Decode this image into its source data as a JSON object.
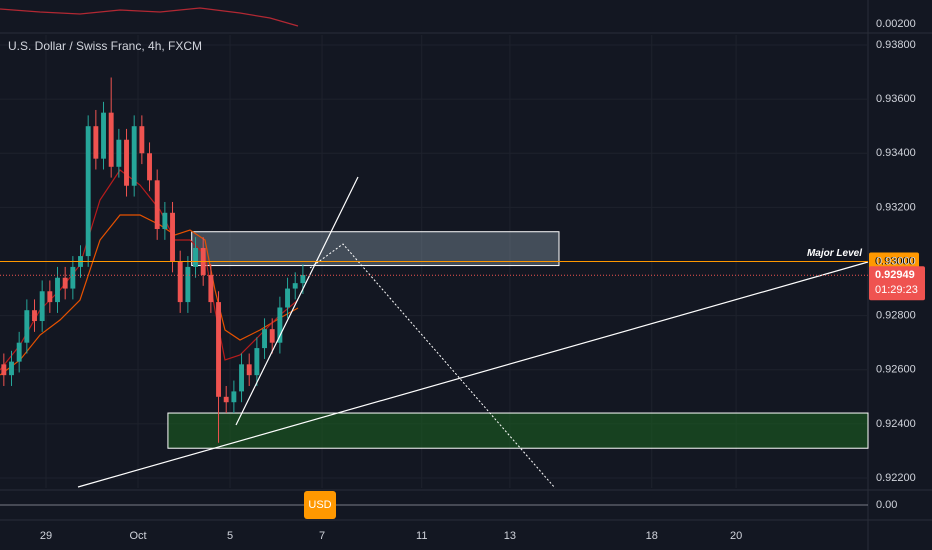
{
  "chart_data": {
    "type": "candlestick",
    "title": "U.S. Dollar / Swiss Franc, 4h, FXCM",
    "xlim": [
      0,
      113.2
    ],
    "xticks": [
      {
        "value": 6,
        "label": "29"
      },
      {
        "value": 18,
        "label": "Oct"
      },
      {
        "value": 30,
        "label": "5"
      },
      {
        "value": 42,
        "label": "7"
      },
      {
        "value": 55,
        "label": "11"
      },
      {
        "value": 66.5,
        "label": "13"
      },
      {
        "value": 85,
        "label": "18"
      },
      {
        "value": 96,
        "label": "20"
      }
    ],
    "ylim": [
      0.92163,
      0.93837
    ],
    "yticks": [
      {
        "value": 0.922,
        "label": "0.92200"
      },
      {
        "value": 0.924,
        "label": "0.92400"
      },
      {
        "value": 0.926,
        "label": "0.92600"
      },
      {
        "value": 0.928,
        "label": "0.92800"
      },
      {
        "value": 0.93,
        "label": "0.93000"
      },
      {
        "value": 0.932,
        "label": "0.93200"
      },
      {
        "value": 0.934,
        "label": "0.93400"
      },
      {
        "value": 0.936,
        "label": "0.93600"
      },
      {
        "value": 0.938,
        "label": "0.93800"
      }
    ],
    "up_color": "#26a69a",
    "down_color": "#ef5350",
    "open": [
      0.9262,
      0.9258,
      0.9263,
      0.927,
      0.9282,
      0.9278,
      0.9289,
      0.9285,
      0.9294,
      0.929,
      0.9298,
      0.9302,
      0.935,
      0.9338,
      0.9355,
      0.9335,
      0.9345,
      0.9328,
      0.935,
      0.934,
      0.933,
      0.9312,
      0.9318,
      0.93,
      0.9285,
      0.9298,
      0.9305,
      0.9295,
      0.9285,
      0.925,
      0.9248,
      0.9252,
      0.9262,
      0.9258,
      0.9268,
      0.9275,
      0.927,
      0.9283,
      0.929,
      0.9292
    ],
    "high": [
      0.9266,
      0.9267,
      0.9274,
      0.9286,
      0.9286,
      0.9293,
      0.9293,
      0.9298,
      0.9298,
      0.9302,
      0.9306,
      0.9354,
      0.9356,
      0.9359,
      0.9368,
      0.9349,
      0.9349,
      0.9354,
      0.9354,
      0.9344,
      0.9334,
      0.9322,
      0.9322,
      0.9304,
      0.9302,
      0.9309,
      0.9309,
      0.9299,
      0.9289,
      0.9254,
      0.9256,
      0.9266,
      0.9266,
      0.9272,
      0.9279,
      0.9279,
      0.9287,
      0.9294,
      0.9296,
      0.9299
    ],
    "low": [
      0.9254,
      0.9254,
      0.9259,
      0.9266,
      0.9274,
      0.9274,
      0.9281,
      0.9281,
      0.9286,
      0.9286,
      0.9294,
      0.9298,
      0.9334,
      0.9334,
      0.9331,
      0.9331,
      0.9324,
      0.9324,
      0.9336,
      0.9326,
      0.9308,
      0.9308,
      0.9296,
      0.9281,
      0.9281,
      0.9294,
      0.9291,
      0.9281,
      0.9233,
      0.9244,
      0.9244,
      0.9248,
      0.9254,
      0.9254,
      0.9264,
      0.9266,
      0.9266,
      0.9279,
      0.9286,
      0.9288
    ],
    "close": [
      0.9258,
      0.9263,
      0.927,
      0.9282,
      0.9278,
      0.9289,
      0.9285,
      0.9294,
      0.929,
      0.9298,
      0.9302,
      0.935,
      0.9338,
      0.9355,
      0.9335,
      0.9345,
      0.9328,
      0.935,
      0.934,
      0.933,
      0.9312,
      0.9318,
      0.93,
      0.9285,
      0.9298,
      0.9305,
      0.9295,
      0.9285,
      0.925,
      0.9248,
      0.9252,
      0.9262,
      0.9258,
      0.9268,
      0.9275,
      0.927,
      0.9283,
      0.929,
      0.9292,
      0.9295
    ],
    "major_level": {
      "label": "Major Level",
      "value": 0.93,
      "value_label": "0.93000",
      "color": "#ff9800"
    },
    "last_price": {
      "value": 0.92949,
      "value_label": "0.92949",
      "countdown": "01:29:23",
      "color": "#ef5350"
    },
    "zones": [
      {
        "top": 0.9311,
        "bottom": 0.92985,
        "from": 25,
        "to": 72.9,
        "color": "#9fb3bf"
      },
      {
        "top": 0.9244,
        "bottom": 0.9231,
        "from": 21.9,
        "to": 113.2,
        "color": "#1b5e20"
      }
    ],
    "indicator_top_label": "0.00200",
    "indicator_bottom_label": "0.00",
    "currency_badge": "USD"
  }
}
